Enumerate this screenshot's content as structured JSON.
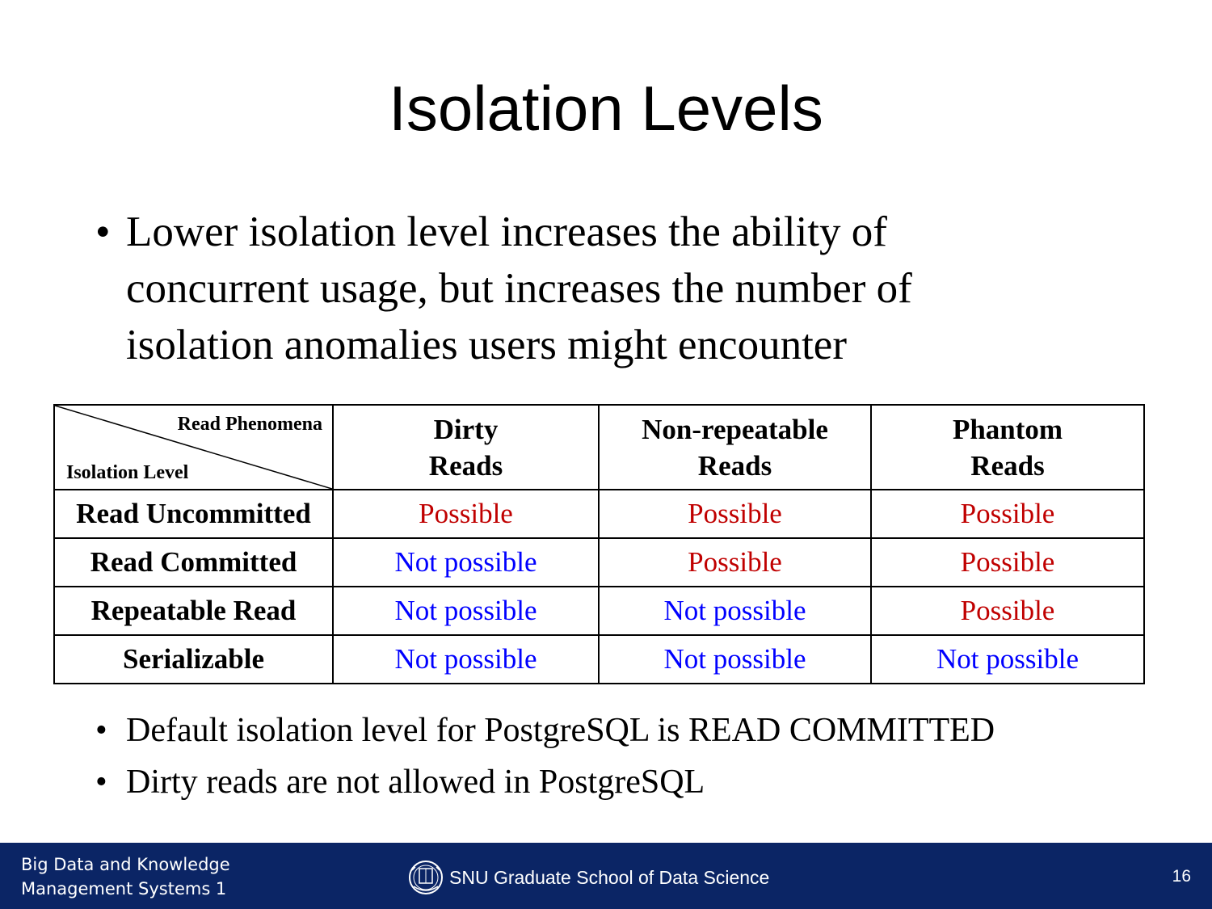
{
  "title": "Isolation Levels",
  "main_bullet": "Lower isolation level increases the ability of concurrent usage, but increases the number of isolation anomalies users might encounter",
  "table": {
    "corner_top": "Read Phenomena",
    "corner_bottom": "Isolation Level",
    "columns": [
      {
        "line1": "Dirty",
        "line2": "Reads"
      },
      {
        "line1": "Non-repeatable",
        "line2": "Reads"
      },
      {
        "line1": "Phantom",
        "line2": "Reads"
      }
    ],
    "rows": [
      {
        "label": "Read Uncommitted",
        "cells": [
          "Possible",
          "Possible",
          "Possible"
        ]
      },
      {
        "label": "Read Committed",
        "cells": [
          "Not possible",
          "Possible",
          "Possible"
        ]
      },
      {
        "label": "Repeatable Read",
        "cells": [
          "Not possible",
          "Not possible",
          "Possible"
        ]
      },
      {
        "label": "Serializable",
        "cells": [
          "Not possible",
          "Not possible",
          "Not possible"
        ]
      }
    ],
    "colors": {
      "possible": "#c00000",
      "not_possible": "#0000ff"
    }
  },
  "sub_bullets": [
    "Default isolation level for PostgreSQL is READ COMMITTED",
    "Dirty reads are not allowed in PostgreSQL"
  ],
  "footer": {
    "course_line1": "Big Data and Knowledge",
    "course_line2": "Management Systems 1",
    "school": "SNU Graduate School of Data Science",
    "page_number": "16",
    "emblem_icon": "snu-emblem-icon",
    "background": "#0b2565"
  }
}
